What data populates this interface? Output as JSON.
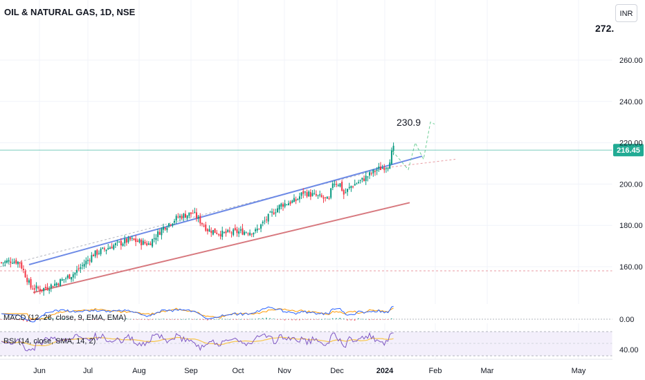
{
  "header": {
    "title": "OIL & NATURAL GAS, 1D, NSE",
    "currency_button": "INR",
    "top_price": "272."
  },
  "chart_data": {
    "type": "candlestick",
    "title": "OIL & NATURAL GAS, 1D, NSE",
    "ylim": [
      146,
      278
    ],
    "yticks": [
      "260.00",
      "240.00",
      "220.00",
      "200.00",
      "180.00",
      "160.00"
    ],
    "ytick_values": [
      260,
      240,
      220,
      200,
      180,
      160
    ],
    "xticks": [
      "Jun",
      "Jul",
      "Aug",
      "Sep",
      "Oct",
      "Nov",
      "Dec",
      "2024",
      "Feb",
      "Mar",
      "May"
    ],
    "last_price": "216.45",
    "last_price_value": 216.45,
    "target_label": "230.9",
    "target_value": 230.9,
    "horizontal_level": 158,
    "close_anchors": [
      [
        0,
        162
      ],
      [
        6,
        163
      ],
      [
        10,
        162
      ],
      [
        16,
        150
      ],
      [
        22,
        149
      ],
      [
        30,
        152
      ],
      [
        40,
        157
      ],
      [
        50,
        166
      ],
      [
        60,
        170
      ],
      [
        70,
        173
      ],
      [
        80,
        171
      ],
      [
        88,
        179
      ],
      [
        96,
        184
      ],
      [
        104,
        186
      ],
      [
        112,
        178
      ],
      [
        120,
        176
      ],
      [
        130,
        177
      ],
      [
        138,
        177
      ],
      [
        146,
        185
      ],
      [
        152,
        190
      ],
      [
        160,
        192
      ],
      [
        164,
        196
      ],
      [
        172,
        194
      ],
      [
        178,
        192
      ],
      [
        180,
        201
      ],
      [
        184,
        200
      ],
      [
        186,
        195
      ],
      [
        190,
        199
      ],
      [
        196,
        202
      ],
      [
        204,
        207
      ],
      [
        210,
        209
      ],
      [
        212,
        215
      ],
      [
        213,
        217
      ]
    ],
    "colors": {
      "up": "#089981",
      "down": "#f23645",
      "upper_channel": "#6d8ae6",
      "lower_channel": "#d7787e",
      "level": "#e89aa0",
      "macd": "#2962ff",
      "signal": "#ff9800",
      "rsi": "#7e57c2",
      "rsi_ma": "#f7c548",
      "last_price_bg": "#22ab94"
    },
    "macd": {
      "label": "MACD (12, 26, close, 9, EMA, EMA)",
      "axis_label": "0.00"
    },
    "rsi": {
      "label": "RSI (14, close, SMA, 14, 2)",
      "axis_label": "40.00"
    }
  }
}
